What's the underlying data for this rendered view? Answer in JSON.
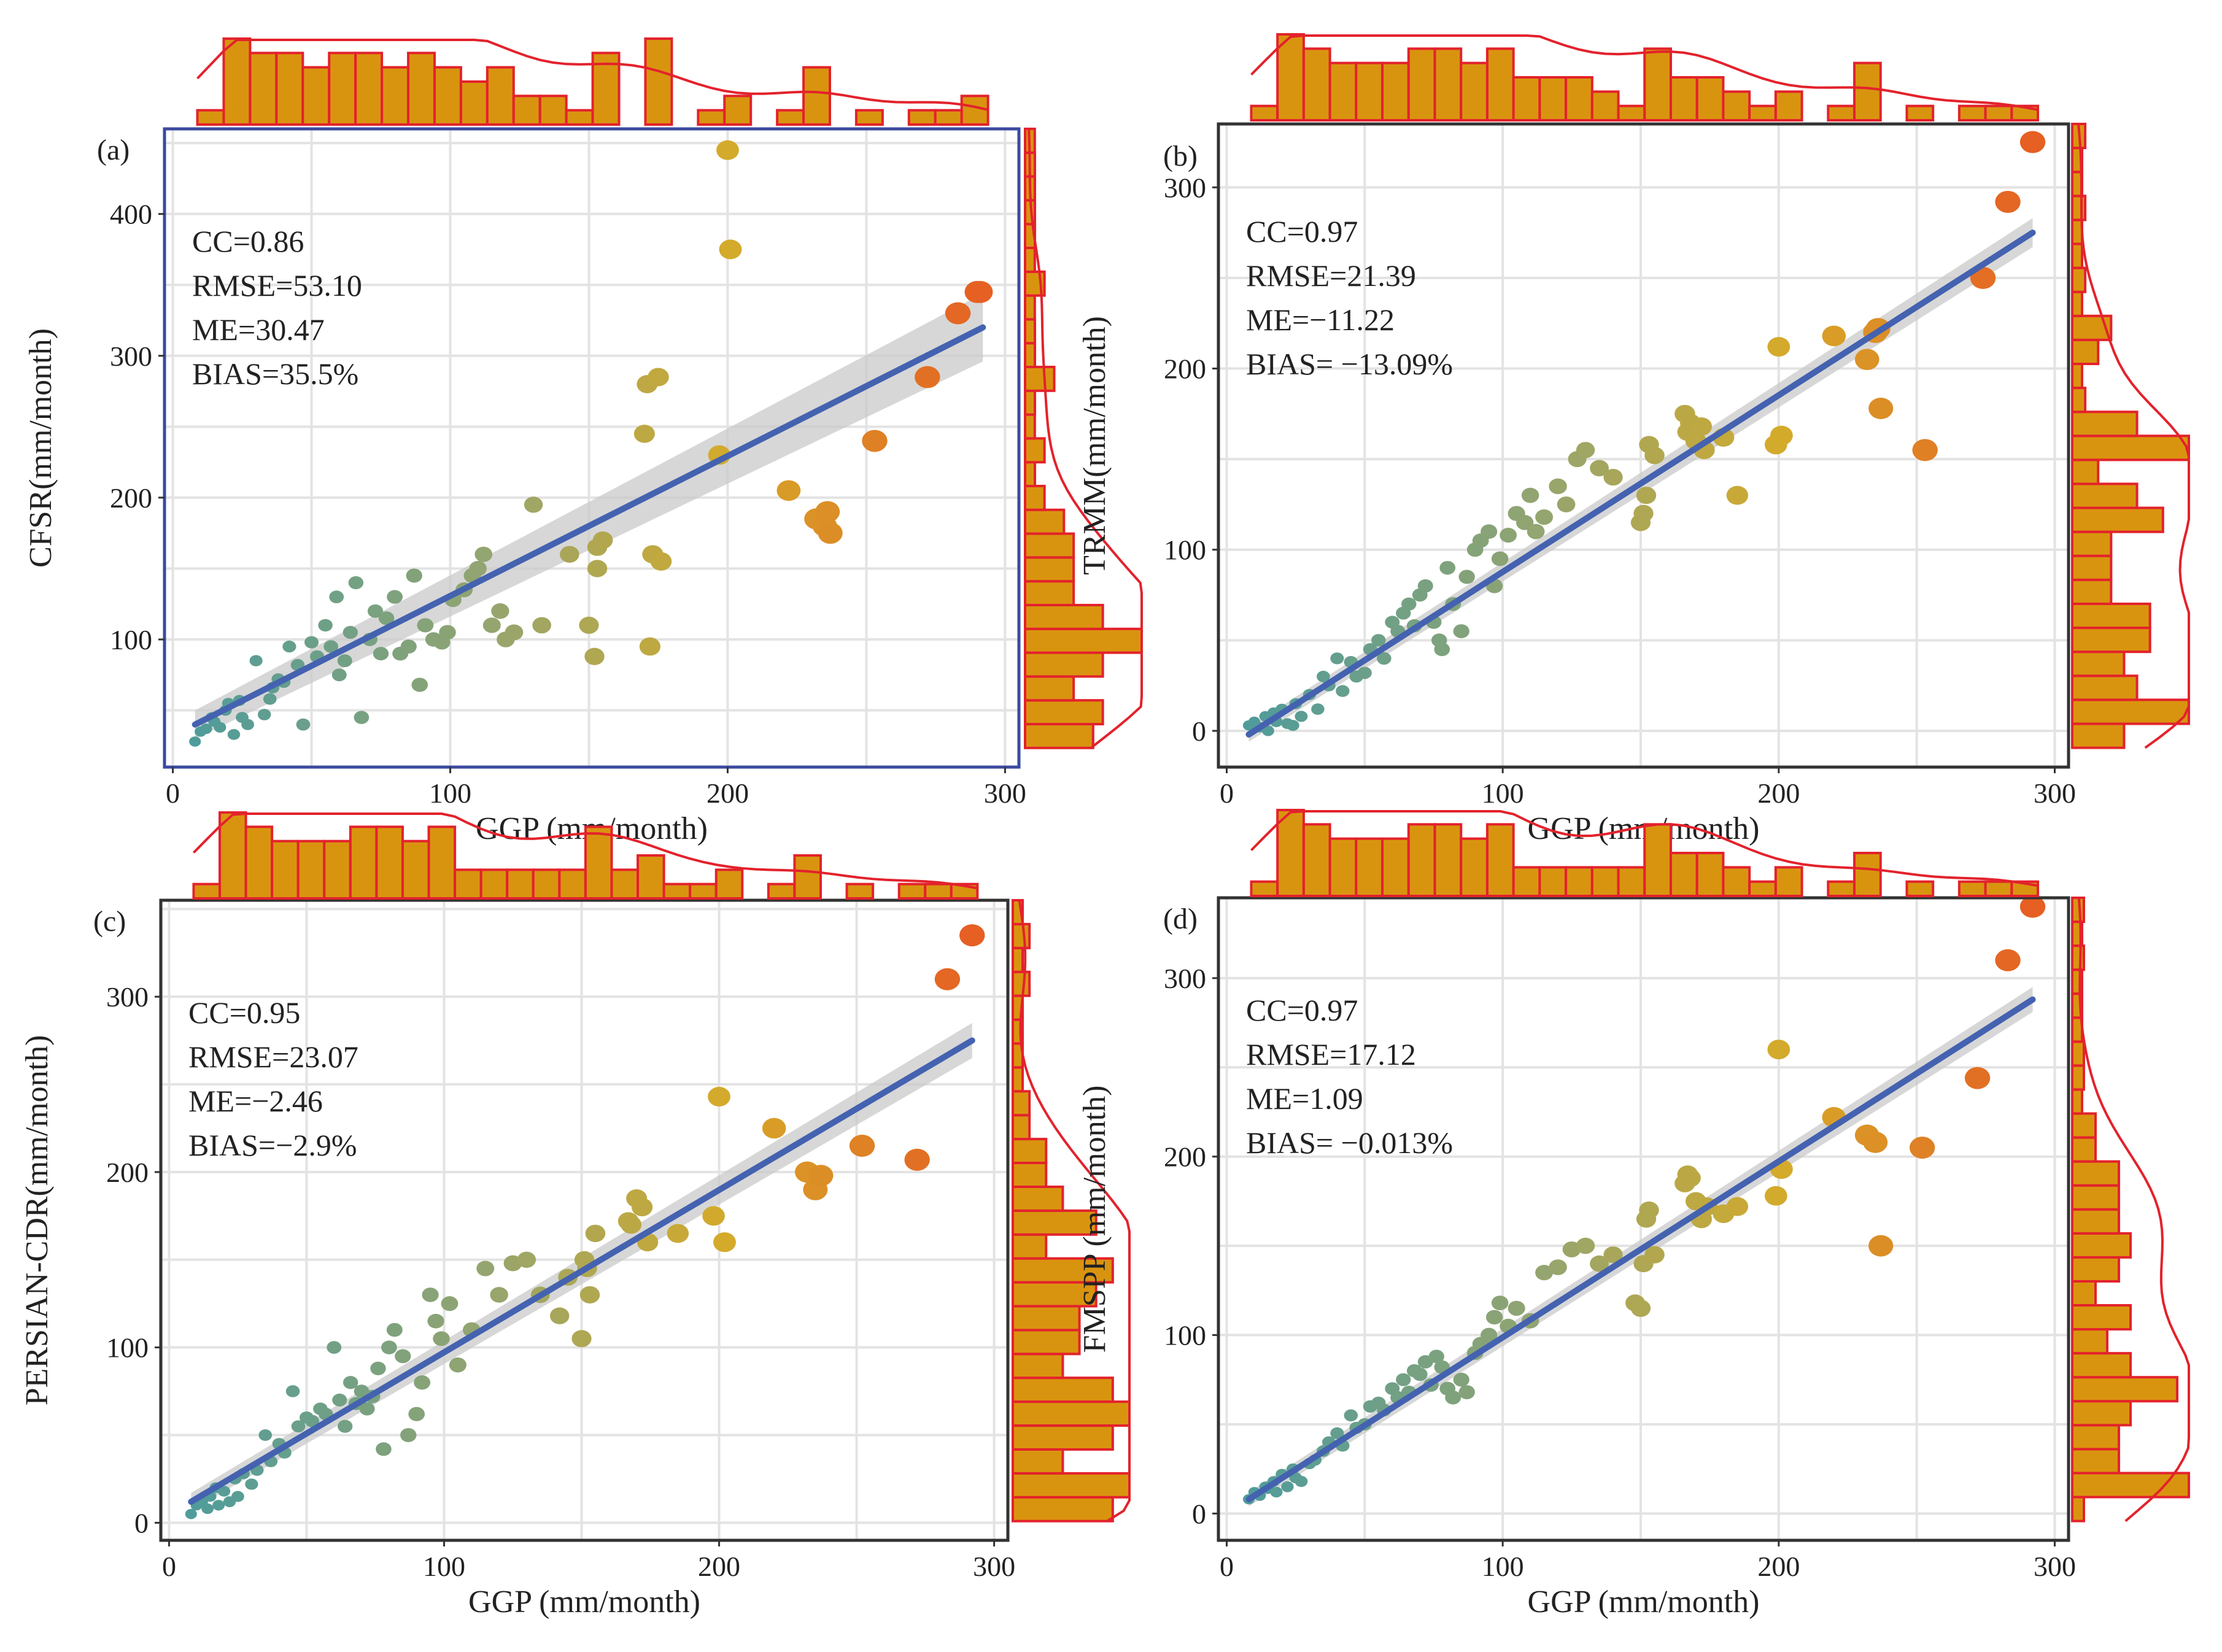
{
  "figure": {
    "colors": {
      "line": "#4462b0",
      "ribbon": "#c9c9c9",
      "hist_fill": "#d9940f",
      "hist_edge": "#e3222c",
      "frame": "#333333",
      "frame_a": "#3b4aa0"
    }
  },
  "chart_data": [
    {
      "type": "scatter",
      "panel_label": "(a)",
      "xlabel": "GGP (mm/month)",
      "ylabel": "CFSR(mm/month)",
      "xlim": [
        -3,
        305
      ],
      "ylim": [
        10,
        460
      ],
      "xticks": [
        0,
        100,
        200,
        300
      ],
      "yticks": [
        100,
        200,
        300,
        400
      ],
      "stats": [
        "CC=0.86",
        "RMSE=53.10",
        "ME=30.47",
        "BIAS=35.5%"
      ],
      "fit": {
        "x": [
          8,
          292
        ],
        "y": [
          40,
          320
        ],
        "ribbon_half_width": [
          10,
          24
        ]
      },
      "x": [
        8,
        10,
        12,
        14,
        15,
        17,
        19,
        20,
        22,
        24,
        25,
        27,
        30,
        33,
        35,
        36,
        38,
        40,
        42,
        45,
        47,
        50,
        52,
        55,
        57,
        59,
        60,
        62,
        64,
        66,
        68,
        71,
        73,
        75,
        77,
        80,
        82,
        85,
        87,
        89,
        91,
        94,
        97,
        99,
        101,
        105,
        108,
        110,
        112,
        115,
        118,
        120,
        123,
        130,
        133,
        143,
        150,
        152,
        153,
        153,
        155,
        170,
        171,
        172,
        173,
        175,
        176,
        197,
        200,
        201,
        222,
        232,
        235,
        236,
        237,
        253,
        272,
        283,
        290,
        291
      ],
      "y": [
        28,
        35,
        37,
        45,
        42,
        38,
        50,
        55,
        33,
        57,
        45,
        40,
        85,
        47,
        58,
        66,
        72,
        70,
        95,
        82,
        40,
        98,
        88,
        110,
        95,
        130,
        75,
        85,
        105,
        140,
        45,
        100,
        120,
        90,
        115,
        130,
        90,
        95,
        145,
        68,
        110,
        100,
        98,
        105,
        128,
        135,
        145,
        150,
        160,
        110,
        120,
        100,
        105,
        195,
        110,
        160,
        110,
        88,
        150,
        165,
        170,
        245,
        280,
        95,
        160,
        285,
        155,
        230,
        445,
        375,
        205,
        185,
        180,
        190,
        175,
        240,
        285,
        330,
        345,
        345
      ]
    },
    {
      "type": "scatter",
      "panel_label": "(b)",
      "xlabel": "GGP (mm/month)",
      "ylabel": "TRMM(mm/month)",
      "xlim": [
        -3,
        305
      ],
      "ylim": [
        -20,
        335
      ],
      "xticks": [
        0,
        100,
        200,
        300
      ],
      "yticks": [
        0,
        100,
        200,
        300
      ],
      "stats": [
        "CC=0.97",
        "RMSE=21.39",
        "ME=−11.22",
        "BIAS= −13.09%"
      ],
      "fit": {
        "x": [
          8,
          292
        ],
        "y": [
          -2,
          275
        ],
        "ribbon_half_width": [
          4,
          8
        ]
      },
      "x": [
        8,
        10,
        12,
        14,
        15,
        17,
        18,
        20,
        22,
        24,
        25,
        27,
        30,
        33,
        35,
        37,
        40,
        42,
        45,
        47,
        50,
        52,
        55,
        57,
        60,
        62,
        64,
        66,
        68,
        70,
        72,
        75,
        77,
        78,
        80,
        82,
        85,
        87,
        90,
        92,
        95,
        97,
        99,
        102,
        105,
        108,
        110,
        112,
        115,
        120,
        123,
        127,
        130,
        135,
        140,
        150,
        151,
        152,
        153,
        155,
        166,
        167,
        168,
        170,
        172,
        173,
        180,
        185,
        199,
        200,
        201,
        220,
        232,
        235,
        236,
        237,
        253,
        274,
        283,
        292
      ],
      "y": [
        3,
        5,
        2,
        8,
        0,
        10,
        5,
        12,
        4,
        3,
        15,
        8,
        20,
        12,
        30,
        25,
        40,
        22,
        38,
        30,
        32,
        45,
        50,
        40,
        60,
        55,
        65,
        70,
        58,
        75,
        80,
        60,
        50,
        45,
        90,
        70,
        55,
        85,
        100,
        105,
        110,
        80,
        95,
        108,
        120,
        115,
        130,
        110,
        118,
        135,
        125,
        150,
        155,
        145,
        140,
        115,
        120,
        130,
        158,
        152,
        175,
        165,
        170,
        160,
        168,
        155,
        162,
        130,
        158,
        212,
        163,
        218,
        205,
        220,
        222,
        178,
        155,
        250,
        292,
        325
      ]
    },
    {
      "type": "scatter",
      "panel_label": "(c)",
      "xlabel": "GGP (mm/month)",
      "ylabel": "PERSIAN-CDR(mm/month)",
      "xlim": [
        -3,
        305
      ],
      "ylim": [
        -10,
        355
      ],
      "xticks": [
        0,
        100,
        200,
        300
      ],
      "yticks": [
        0,
        100,
        200,
        300
      ],
      "stats": [
        "CC=0.95",
        "RMSE=23.07",
        "ME=−2.46",
        "BIAS=−2.9%"
      ],
      "fit": {
        "x": [
          8,
          292
        ],
        "y": [
          12,
          275
        ],
        "ribbon_half_width": [
          5,
          10
        ]
      },
      "x": [
        8,
        10,
        12,
        14,
        15,
        17,
        18,
        20,
        22,
        24,
        25,
        27,
        30,
        32,
        35,
        37,
        40,
        42,
        45,
        47,
        50,
        52,
        55,
        57,
        60,
        62,
        64,
        66,
        68,
        70,
        72,
        74,
        76,
        78,
        80,
        82,
        85,
        87,
        90,
        92,
        95,
        97,
        99,
        102,
        105,
        110,
        115,
        120,
        125,
        130,
        135,
        142,
        145,
        150,
        151,
        152,
        153,
        155,
        167,
        168,
        170,
        172,
        174,
        185,
        198,
        200,
        202,
        220,
        232,
        235,
        237,
        252,
        272,
        283,
        292
      ],
      "y": [
        5,
        10,
        12,
        8,
        15,
        20,
        10,
        18,
        12,
        25,
        15,
        28,
        22,
        30,
        50,
        35,
        45,
        40,
        75,
        55,
        60,
        58,
        65,
        62,
        100,
        70,
        55,
        80,
        68,
        75,
        65,
        72,
        88,
        42,
        100,
        110,
        95,
        50,
        62,
        80,
        130,
        115,
        105,
        125,
        90,
        110,
        145,
        130,
        148,
        150,
        130,
        118,
        140,
        105,
        150,
        145,
        130,
        165,
        172,
        170,
        185,
        180,
        160,
        165,
        175,
        243,
        160,
        225,
        200,
        190,
        198,
        215,
        207,
        310,
        335
      ]
    },
    {
      "type": "scatter",
      "panel_label": "(d)",
      "xlabel": "GGP (mm/month)",
      "ylabel": "FMSPP (mm/month)",
      "xlim": [
        -3,
        305
      ],
      "ylim": [
        -15,
        345
      ],
      "xticks": [
        0,
        100,
        200,
        300
      ],
      "yticks": [
        0,
        100,
        200,
        300
      ],
      "stats": [
        "CC=0.97",
        "RMSE=17.12",
        "ME=1.09",
        "BIAS= −0.013%"
      ],
      "fit": {
        "x": [
          8,
          292
        ],
        "y": [
          8,
          288
        ],
        "ribbon_half_width": [
          4,
          7
        ]
      },
      "x": [
        8,
        10,
        12,
        14,
        15,
        17,
        18,
        20,
        22,
        24,
        25,
        27,
        30,
        32,
        35,
        37,
        40,
        42,
        45,
        47,
        50,
        52,
        55,
        57,
        60,
        62,
        64,
        66,
        68,
        70,
        72,
        74,
        76,
        78,
        80,
        82,
        85,
        87,
        90,
        92,
        95,
        97,
        99,
        102,
        105,
        110,
        115,
        120,
        125,
        130,
        135,
        140,
        148,
        150,
        151,
        152,
        153,
        155,
        166,
        167,
        168,
        170,
        172,
        174,
        180,
        185,
        199,
        200,
        201,
        220,
        232,
        235,
        237,
        252,
        272,
        283,
        292
      ],
      "y": [
        8,
        12,
        10,
        15,
        14,
        18,
        12,
        22,
        15,
        25,
        20,
        18,
        28,
        30,
        35,
        40,
        45,
        38,
        55,
        48,
        50,
        60,
        62,
        58,
        70,
        65,
        75,
        68,
        80,
        78,
        85,
        72,
        88,
        82,
        70,
        65,
        75,
        68,
        90,
        95,
        100,
        110,
        118,
        105,
        115,
        108,
        135,
        138,
        148,
        150,
        140,
        145,
        118,
        115,
        140,
        165,
        170,
        145,
        185,
        190,
        188,
        175,
        165,
        172,
        168,
        172,
        178,
        260,
        193,
        222,
        212,
        208,
        150,
        205,
        244,
        310,
        340
      ]
    }
  ]
}
